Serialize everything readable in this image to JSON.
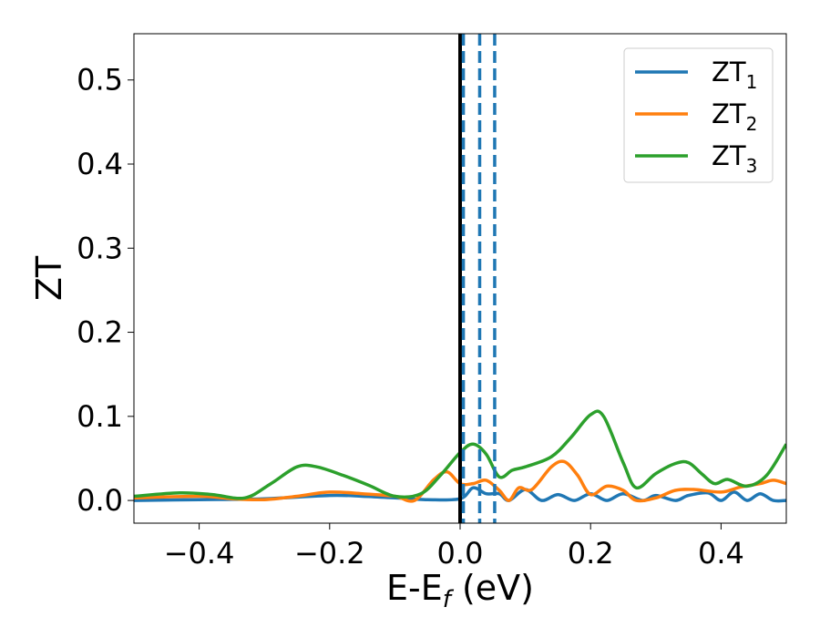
{
  "chart_data": {
    "type": "line",
    "xlabel": {
      "main": "E-E",
      "sub": "f",
      "rest": " (eV)"
    },
    "ylabel": "ZT",
    "xlim": [
      -0.5,
      0.5
    ],
    "ylim": [
      -0.027,
      0.555
    ],
    "xticks": [
      {
        "value": -0.4,
        "label": "−0.4"
      },
      {
        "value": -0.2,
        "label": "−0.2"
      },
      {
        "value": 0.0,
        "label": "0.0"
      },
      {
        "value": 0.2,
        "label": "0.2"
      },
      {
        "value": 0.4,
        "label": "0.4"
      }
    ],
    "yticks": [
      {
        "value": 0.0,
        "label": "0.0"
      },
      {
        "value": 0.1,
        "label": "0.1"
      },
      {
        "value": 0.2,
        "label": "0.2"
      },
      {
        "value": 0.3,
        "label": "0.3"
      },
      {
        "value": 0.4,
        "label": "0.4"
      },
      {
        "value": 0.5,
        "label": "0.5"
      }
    ],
    "grid": false,
    "legend_position": "top-right",
    "vlines": [
      {
        "x": 0.0,
        "color": "#000000",
        "style": "solid"
      },
      {
        "x": 0.005,
        "color": "#1f77b4",
        "style": "dashed"
      },
      {
        "x": 0.03,
        "color": "#1f77b4",
        "style": "dashed"
      },
      {
        "x": 0.053,
        "color": "#1f77b4",
        "style": "dashed"
      }
    ],
    "series": [
      {
        "name": "ZT",
        "sub": "1",
        "color": "#1f77b4",
        "points": [
          [
            -0.5,
            0.0
          ],
          [
            -0.4,
            0.001
          ],
          [
            -0.3,
            0.002
          ],
          [
            -0.2,
            0.006
          ],
          [
            -0.15,
            0.005
          ],
          [
            -0.1,
            0.003
          ],
          [
            -0.05,
            0.001
          ],
          [
            0.0,
            0.002
          ],
          [
            0.02,
            0.015
          ],
          [
            0.04,
            0.008
          ],
          [
            0.06,
            0.008
          ],
          [
            0.075,
            0.0
          ],
          [
            0.1,
            0.013
          ],
          [
            0.125,
            0.0
          ],
          [
            0.15,
            0.007
          ],
          [
            0.175,
            0.0
          ],
          [
            0.2,
            0.008
          ],
          [
            0.225,
            0.0
          ],
          [
            0.25,
            0.008
          ],
          [
            0.28,
            0.0
          ],
          [
            0.3,
            0.006
          ],
          [
            0.33,
            0.0
          ],
          [
            0.35,
            0.006
          ],
          [
            0.38,
            0.009
          ],
          [
            0.4,
            0.0
          ],
          [
            0.42,
            0.01
          ],
          [
            0.44,
            0.0
          ],
          [
            0.46,
            0.008
          ],
          [
            0.48,
            0.0
          ],
          [
            0.5,
            0.0
          ]
        ]
      },
      {
        "name": "ZT",
        "sub": "2",
        "color": "#ff7f0e",
        "points": [
          [
            -0.5,
            0.003
          ],
          [
            -0.4,
            0.005
          ],
          [
            -0.35,
            0.002
          ],
          [
            -0.3,
            0.001
          ],
          [
            -0.25,
            0.005
          ],
          [
            -0.2,
            0.01
          ],
          [
            -0.15,
            0.008
          ],
          [
            -0.1,
            0.005
          ],
          [
            -0.07,
            0.0
          ],
          [
            -0.04,
            0.025
          ],
          [
            -0.02,
            0.034
          ],
          [
            0.0,
            0.02
          ],
          [
            0.02,
            0.02
          ],
          [
            0.04,
            0.024
          ],
          [
            0.06,
            0.012
          ],
          [
            0.075,
            0.0
          ],
          [
            0.09,
            0.015
          ],
          [
            0.11,
            0.013
          ],
          [
            0.14,
            0.04
          ],
          [
            0.16,
            0.046
          ],
          [
            0.18,
            0.03
          ],
          [
            0.2,
            0.007
          ],
          [
            0.225,
            0.017
          ],
          [
            0.25,
            0.012
          ],
          [
            0.27,
            0.0
          ],
          [
            0.3,
            0.003
          ],
          [
            0.33,
            0.012
          ],
          [
            0.36,
            0.013
          ],
          [
            0.4,
            0.01
          ],
          [
            0.43,
            0.016
          ],
          [
            0.46,
            0.02
          ],
          [
            0.48,
            0.024
          ],
          [
            0.5,
            0.02
          ]
        ]
      },
      {
        "name": "ZT",
        "sub": "3",
        "color": "#2ca02c",
        "points": [
          [
            -0.5,
            0.005
          ],
          [
            -0.43,
            0.009
          ],
          [
            -0.38,
            0.007
          ],
          [
            -0.33,
            0.003
          ],
          [
            -0.29,
            0.02
          ],
          [
            -0.25,
            0.04
          ],
          [
            -0.22,
            0.04
          ],
          [
            -0.18,
            0.03
          ],
          [
            -0.14,
            0.018
          ],
          [
            -0.1,
            0.005
          ],
          [
            -0.06,
            0.008
          ],
          [
            -0.03,
            0.03
          ],
          [
            0.0,
            0.057
          ],
          [
            0.02,
            0.067
          ],
          [
            0.04,
            0.055
          ],
          [
            0.06,
            0.028
          ],
          [
            0.08,
            0.036
          ],
          [
            0.1,
            0.04
          ],
          [
            0.14,
            0.052
          ],
          [
            0.17,
            0.075
          ],
          [
            0.2,
            0.102
          ],
          [
            0.22,
            0.1
          ],
          [
            0.25,
            0.045
          ],
          [
            0.27,
            0.015
          ],
          [
            0.3,
            0.032
          ],
          [
            0.33,
            0.044
          ],
          [
            0.35,
            0.045
          ],
          [
            0.37,
            0.032
          ],
          [
            0.39,
            0.02
          ],
          [
            0.41,
            0.025
          ],
          [
            0.44,
            0.017
          ],
          [
            0.47,
            0.03
          ],
          [
            0.5,
            0.067
          ]
        ]
      }
    ]
  }
}
